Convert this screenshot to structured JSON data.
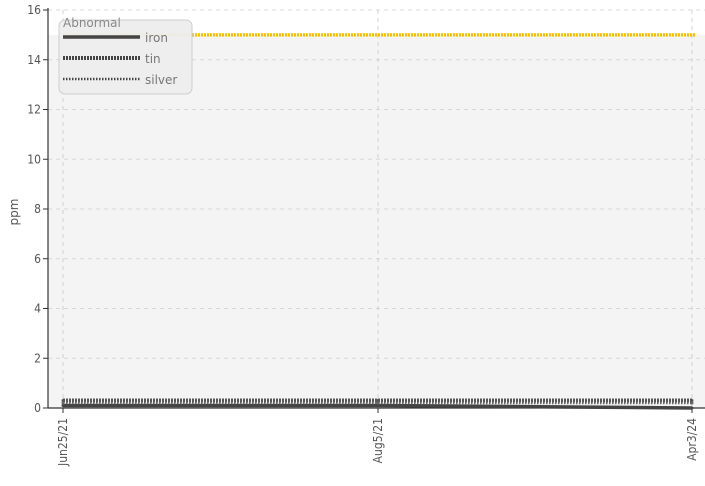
{
  "chart_data": {
    "type": "line",
    "title": "",
    "xlabel": "",
    "ylabel": "ppm",
    "ylim": [
      0,
      16
    ],
    "yticks": [
      0,
      2,
      4,
      6,
      8,
      10,
      12,
      14,
      16
    ],
    "categories": [
      "Jun25/21",
      "Aug5/21",
      "Apr3/24"
    ],
    "grid": true,
    "legend": {
      "title": "Abnormal",
      "placement": "top-left",
      "items": [
        {
          "name": "iron",
          "style": "solid"
        },
        {
          "name": "tin",
          "style": "dense-dash"
        },
        {
          "name": "silver",
          "style": "fine-dot"
        }
      ]
    },
    "bands": [
      {
        "from": 0,
        "to": 15,
        "color": "#f4f4f4"
      }
    ],
    "threshold": {
      "value": 15,
      "color": "#f5c400"
    },
    "series": [
      {
        "name": "iron",
        "values": [
          0.1,
          0.1,
          0.0
        ],
        "color": "#444444",
        "style": "solid"
      },
      {
        "name": "tin",
        "values": [
          0.3,
          0.3,
          0.3
        ],
        "color": "#555555",
        "style": "dense-dash"
      },
      {
        "name": "silver",
        "values": [
          0.2,
          0.2,
          0.2
        ],
        "color": "#666666",
        "style": "fine-dot"
      }
    ]
  }
}
